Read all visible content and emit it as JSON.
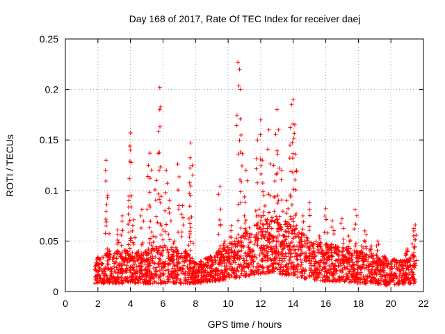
{
  "chart_data": {
    "type": "scatter",
    "title": "Day 168 of 2017, Rate Of TEC Index for receiver daej",
    "xlabel": "GPS time / hours",
    "ylabel": "ROTI / TECUs",
    "xlim": [
      0,
      22
    ],
    "ylim": [
      0,
      0.25
    ],
    "x_ticks": [
      0,
      2,
      4,
      6,
      8,
      10,
      12,
      14,
      16,
      18,
      20,
      22
    ],
    "x_tick_labels": [
      "0",
      "2",
      "4",
      "6",
      "8",
      "10",
      "12",
      "14",
      "16",
      "18",
      "20",
      "22"
    ],
    "y_ticks": [
      0,
      0.05,
      0.1,
      0.15,
      0.2,
      0.25
    ],
    "y_tick_labels": [
      "0",
      "0.05",
      "0.1",
      "0.15",
      "0.2",
      "0.25"
    ],
    "grid": true,
    "marker": "plus",
    "color": "#ff0000",
    "series": [
      {
        "name": "ROTI",
        "x": [
          1.8,
          2.0,
          2.3,
          2.5,
          2.6,
          2.7,
          3.0,
          3.2,
          3.4,
          3.5,
          3.6,
          3.8,
          3.9,
          4.0,
          4.0,
          4.1,
          4.2,
          4.4,
          4.5,
          4.7,
          4.9,
          5.0,
          5.1,
          5.2,
          5.3,
          5.5,
          5.6,
          5.8,
          5.8,
          5.9,
          6.0,
          6.2,
          6.4,
          6.5,
          6.7,
          6.9,
          7.1,
          7.2,
          7.4,
          7.6,
          7.7,
          7.8,
          7.9,
          8.0,
          8.3,
          8.6,
          8.9,
          9.2,
          9.5,
          9.5,
          9.8,
          10.0,
          10.2,
          10.4,
          10.6,
          10.7,
          10.8,
          11.0,
          11.1,
          11.3,
          11.5,
          11.7,
          11.8,
          12.0,
          12.1,
          12.2,
          12.4,
          12.5,
          12.6,
          12.8,
          12.9,
          13.0,
          13.1,
          13.3,
          13.4,
          13.6,
          13.8,
          13.9,
          14.0,
          14.1,
          14.2,
          14.4,
          14.6,
          14.8,
          15.0,
          15.2,
          15.4,
          15.6,
          15.8,
          16.0,
          16.2,
          16.4,
          16.6,
          16.8,
          17.0,
          17.2,
          17.4,
          17.6,
          17.8,
          18.0,
          18.2,
          18.4,
          18.6,
          18.8,
          19.0,
          19.2,
          19.4,
          19.6,
          19.8,
          20.0,
          20.2,
          20.4,
          20.6,
          20.8,
          21.0,
          21.2,
          21.4,
          21.5
        ],
        "y": [
          0.022,
          0.034,
          0.018,
          0.13,
          0.095,
          0.041,
          0.028,
          0.061,
          0.019,
          0.075,
          0.033,
          0.022,
          0.09,
          0.157,
          0.14,
          0.035,
          0.071,
          0.02,
          0.04,
          0.081,
          0.018,
          0.032,
          0.125,
          0.137,
          0.059,
          0.028,
          0.11,
          0.202,
          0.18,
          0.065,
          0.024,
          0.12,
          0.09,
          0.034,
          0.05,
          0.126,
          0.022,
          0.085,
          0.04,
          0.072,
          0.147,
          0.125,
          0.03,
          0.018,
          0.03,
          0.027,
          0.035,
          0.022,
          0.104,
          0.045,
          0.05,
          0.035,
          0.065,
          0.04,
          0.227,
          0.22,
          0.155,
          0.075,
          0.12,
          0.055,
          0.035,
          0.08,
          0.15,
          0.17,
          0.13,
          0.095,
          0.045,
          0.16,
          0.07,
          0.125,
          0.045,
          0.18,
          0.16,
          0.12,
          0.055,
          0.09,
          0.145,
          0.185,
          0.19,
          0.165,
          0.12,
          0.05,
          0.075,
          0.035,
          0.088,
          0.045,
          0.03,
          0.055,
          0.04,
          0.082,
          0.035,
          0.07,
          0.045,
          0.025,
          0.072,
          0.035,
          0.055,
          0.025,
          0.081,
          0.03,
          0.045,
          0.06,
          0.025,
          0.045,
          0.03,
          0.05,
          0.02,
          0.035,
          0.025,
          0.015,
          0.032,
          0.022,
          0.018,
          0.03,
          0.042,
          0.025,
          0.06,
          0.066
        ]
      }
    ],
    "band": {
      "description": "dense cluster of points filling the baseline region",
      "x": [
        1.8,
        2.5,
        3.5,
        4.5,
        5.5,
        6.5,
        7.5,
        8.0,
        9.0,
        10.0,
        11.0,
        12.0,
        13.0,
        14.0,
        15.0,
        16.0,
        17.0,
        18.0,
        19.0,
        20.0,
        21.0,
        21.5
      ],
      "low": [
        0.008,
        0.008,
        0.008,
        0.008,
        0.008,
        0.008,
        0.008,
        0.008,
        0.01,
        0.012,
        0.015,
        0.018,
        0.018,
        0.015,
        0.012,
        0.01,
        0.01,
        0.008,
        0.008,
        0.006,
        0.008,
        0.008
      ],
      "high": [
        0.028,
        0.038,
        0.042,
        0.038,
        0.045,
        0.045,
        0.04,
        0.028,
        0.036,
        0.048,
        0.06,
        0.07,
        0.075,
        0.065,
        0.052,
        0.048,
        0.045,
        0.04,
        0.036,
        0.03,
        0.032,
        0.04
      ]
    }
  }
}
